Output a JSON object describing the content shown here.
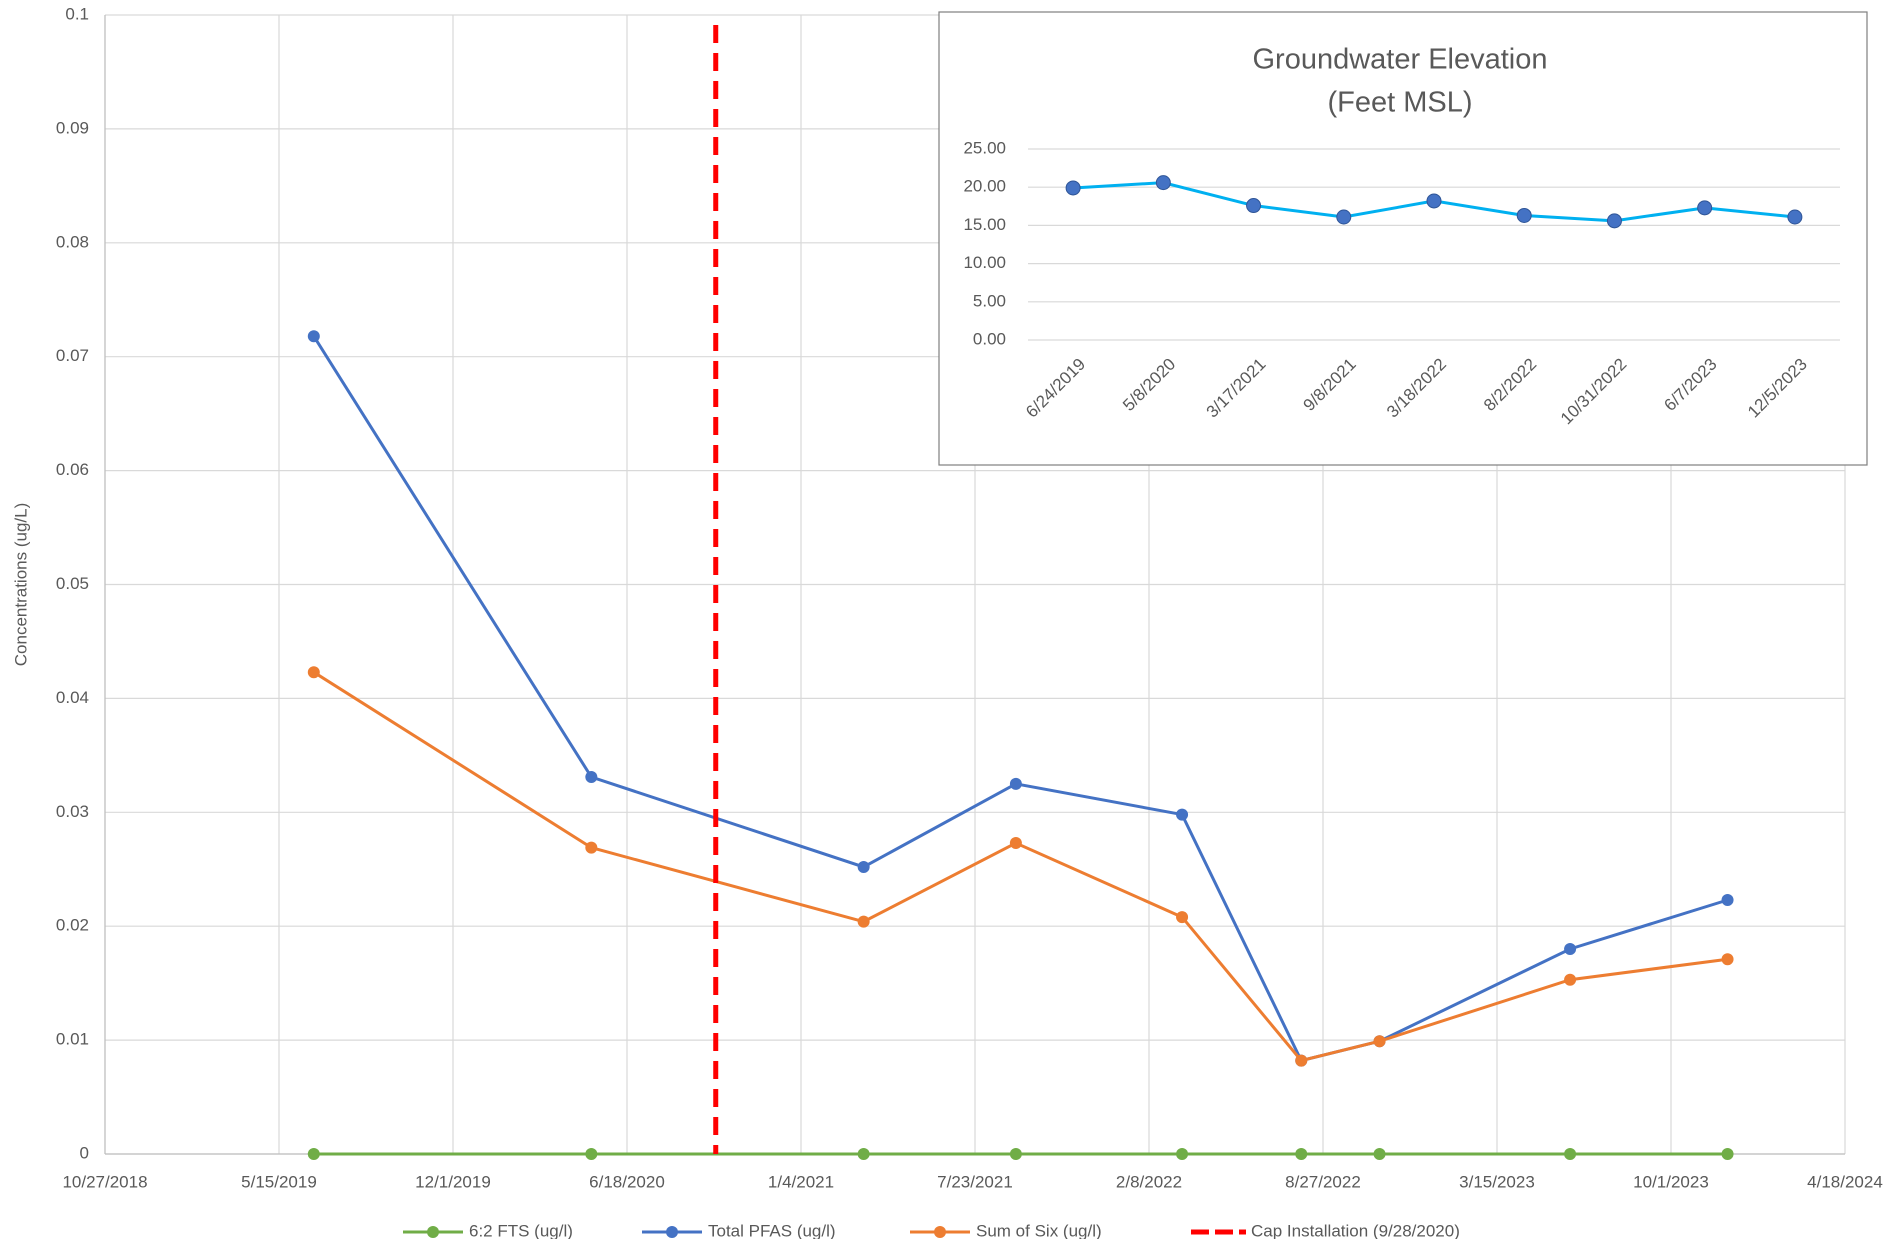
{
  "chart_data": [
    {
      "type": "line",
      "y_label": "Concentrations (ug/L)",
      "ylim": [
        0,
        0.1
      ],
      "yticks": [
        0,
        0.01,
        0.02,
        0.03,
        0.04,
        0.05,
        0.06,
        0.07,
        0.08,
        0.09,
        0.1
      ],
      "xlim": [
        "2018-10-27",
        "2024-04-18"
      ],
      "xticks": [
        {
          "value": "2018-10-27",
          "label": "10/27/2018"
        },
        {
          "value": "2019-05-15",
          "label": "5/15/2019"
        },
        {
          "value": "2019-12-01",
          "label": "12/1/2019"
        },
        {
          "value": "2020-06-18",
          "label": "6/18/2020"
        },
        {
          "value": "2021-01-04",
          "label": "1/4/2021"
        },
        {
          "value": "2021-07-23",
          "label": "7/23/2021"
        },
        {
          "value": "2022-02-08",
          "label": "2/8/2022"
        },
        {
          "value": "2022-08-27",
          "label": "8/27/2022"
        },
        {
          "value": "2023-03-15",
          "label": "3/15/2023"
        },
        {
          "value": "2023-10-01",
          "label": "10/1/2023"
        },
        {
          "value": "2024-04-18",
          "label": "4/18/2024"
        }
      ],
      "grid": true,
      "legend": "bottom",
      "x": [
        "2019-06-24",
        "2020-05-08",
        "2021-03-17",
        "2021-09-08",
        "2022-03-18",
        "2022-08-02",
        "2022-10-31",
        "2023-06-07",
        "2023-12-05"
      ],
      "series": [
        {
          "name": "6:2 FTS (ug/l)",
          "color": "#70ad47",
          "values": [
            0,
            0,
            0,
            0,
            0,
            0,
            0,
            0,
            0
          ]
        },
        {
          "name": "Total PFAS (ug/l)",
          "color": "#4472c4",
          "values": [
            0.0718,
            0.0331,
            0.0252,
            0.0325,
            0.0298,
            0.0082,
            0.0099,
            0.018,
            0.0223
          ]
        },
        {
          "name": "Sum of Six (ug/l)",
          "color": "#ed7d31",
          "values": [
            0.0423,
            0.0269,
            0.0204,
            0.0273,
            0.0208,
            0.0082,
            0.0099,
            0.0153,
            0.0171
          ]
        }
      ],
      "reference_line": {
        "name": "Cap Installation (9/28/2020)",
        "x": "2020-09-28",
        "color": "#ff0000"
      }
    },
    {
      "type": "line",
      "title": [
        "Groundwater Elevation",
        "(Feet MSL)"
      ],
      "categories": [
        "6/24/2019",
        "5/8/2020",
        "3/17/2021",
        "9/8/2021",
        "3/18/2022",
        "8/2/2022",
        "10/31/2022",
        "6/7/2023",
        "12/5/2023"
      ],
      "values": [
        19.9,
        20.6,
        17.6,
        16.1,
        18.2,
        16.3,
        15.6,
        17.3,
        16.1
      ],
      "color": "#00b0f0",
      "marker_color": "#4472c4",
      "ylim": [
        0,
        25
      ],
      "yticks": [
        {
          "value": 0,
          "label": "0.00"
        },
        {
          "value": 5,
          "label": "5.00"
        },
        {
          "value": 10,
          "label": "10.00"
        },
        {
          "value": 15,
          "label": "15.00"
        },
        {
          "value": 20,
          "label": "20.00"
        },
        {
          "value": 25,
          "label": "25.00"
        }
      ],
      "grid": true
    }
  ]
}
